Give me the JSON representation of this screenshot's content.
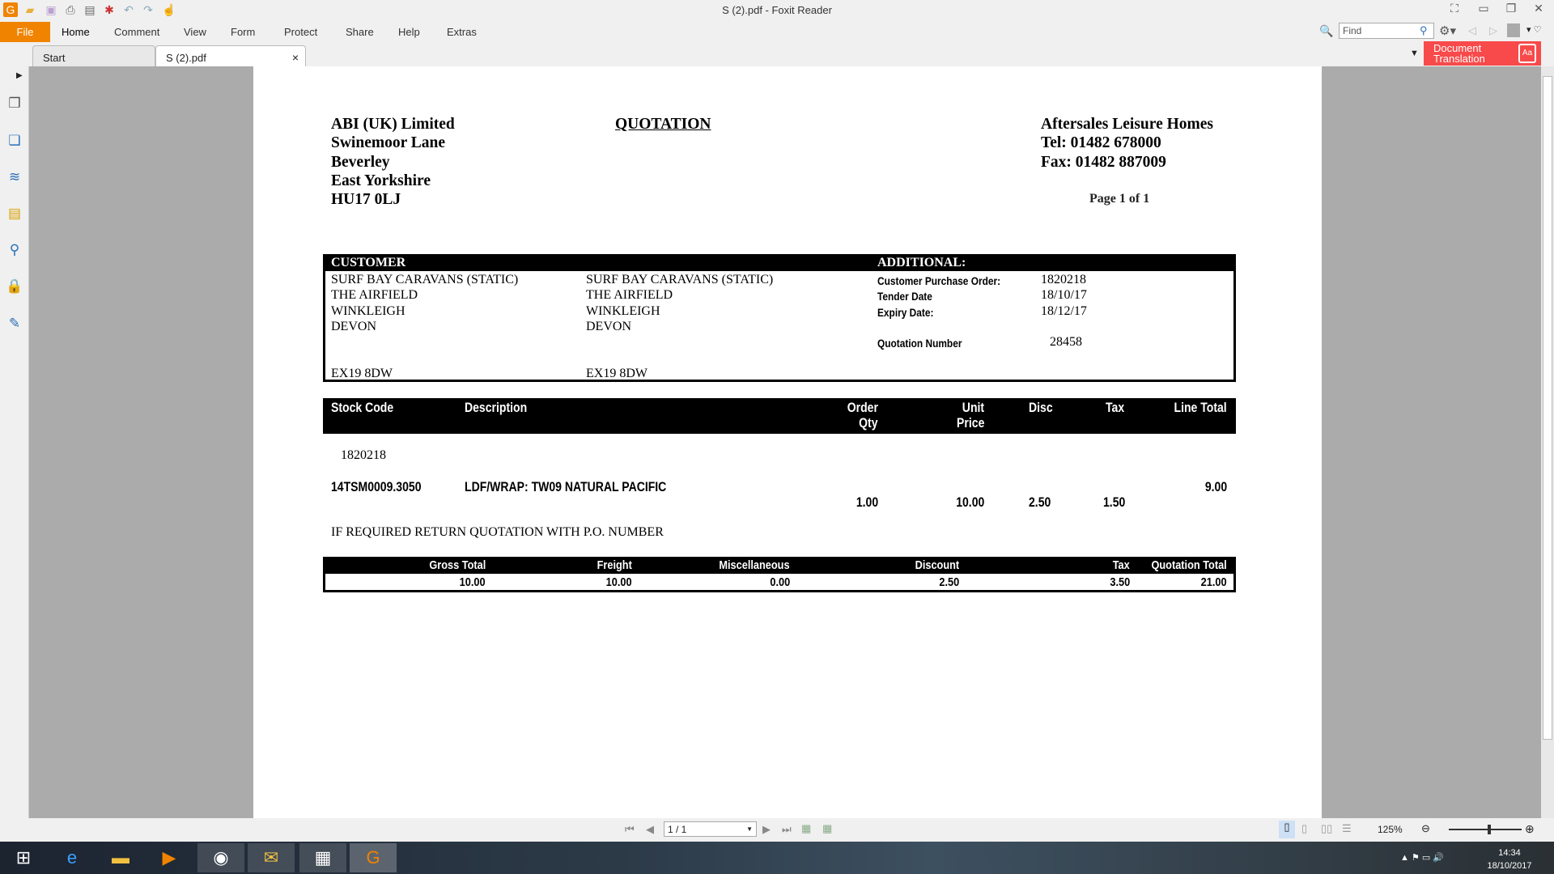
{
  "window": {
    "title": "S (2).pdf - Foxit Reader"
  },
  "menu": [
    "File",
    "Home",
    "Comment",
    "View",
    "Form",
    "Protect",
    "Share",
    "Help",
    "Extras"
  ],
  "find_placeholder": "Find",
  "document_translation": [
    "Document",
    "Translation"
  ],
  "tabs": [
    {
      "label": "Start"
    },
    {
      "label": "S (2).pdf",
      "close": "×"
    }
  ],
  "doc": {
    "company": [
      "ABI (UK) Limited",
      "Swinemoor Lane",
      "Beverley",
      "East Yorkshire",
      "HU17 0LJ"
    ],
    "title": "QUOTATION",
    "recipient": [
      "Aftersales Leisure Homes",
      "Tel: 01482 678000",
      "Fax: 01482 887009"
    ],
    "page_info": "Page 1 of 1",
    "customer_header": "CUSTOMER",
    "additional_header": "ADDITIONAL:",
    "customer_col1": [
      "SURF BAY CARAVANS (STATIC)",
      "THE AIRFIELD",
      "WINKLEIGH",
      "DEVON",
      "EX19 8DW"
    ],
    "customer_col2": [
      "SURF BAY CARAVANS (STATIC)",
      "THE AIRFIELD",
      "WINKLEIGH",
      "DEVON",
      "EX19 8DW"
    ],
    "additional": [
      {
        "label": "Customer Purchase Order:",
        "value": "1820218"
      },
      {
        "label": "Tender Date",
        "value": "18/10/17"
      },
      {
        "label": "Expiry Date:",
        "value": "18/12/17"
      },
      {
        "label": "Quotation Number",
        "value": "28458"
      }
    ],
    "items_headers": {
      "stock_code": "Stock Code",
      "description": "Description",
      "order_qty": [
        "Order",
        "Qty"
      ],
      "unit_price": [
        "Unit",
        "Price"
      ],
      "disc": "Disc",
      "tax": "Tax",
      "line_total": "Line Total"
    },
    "reference": "1820218",
    "item": {
      "stock_code": "14TSM0009.3050",
      "description": "LDF/WRAP: TW09 NATURAL PACIFIC",
      "order_qty": "1.00",
      "unit_price": "10.00",
      "disc": "2.50",
      "tax": "1.50",
      "line_total": "9.00"
    },
    "note": "IF REQUIRED RETURN QUOTATION WITH P.O. NUMBER",
    "totals_headers": [
      "Gross Total",
      "Freight",
      "Miscellaneous",
      "Discount",
      "Tax",
      "Quotation Total"
    ],
    "totals_values": [
      "10.00",
      "10.00",
      "0.00",
      "2.50",
      "3.50",
      "21.00"
    ]
  },
  "status": {
    "page_field": "1 / 1",
    "zoom": "125%",
    "zoom_fraction": 0.55
  },
  "taskbar": {
    "time": "14:34",
    "date": "18/10/2017"
  },
  "colors": {
    "accent": "#f08300",
    "translation": "#f84a4a"
  }
}
